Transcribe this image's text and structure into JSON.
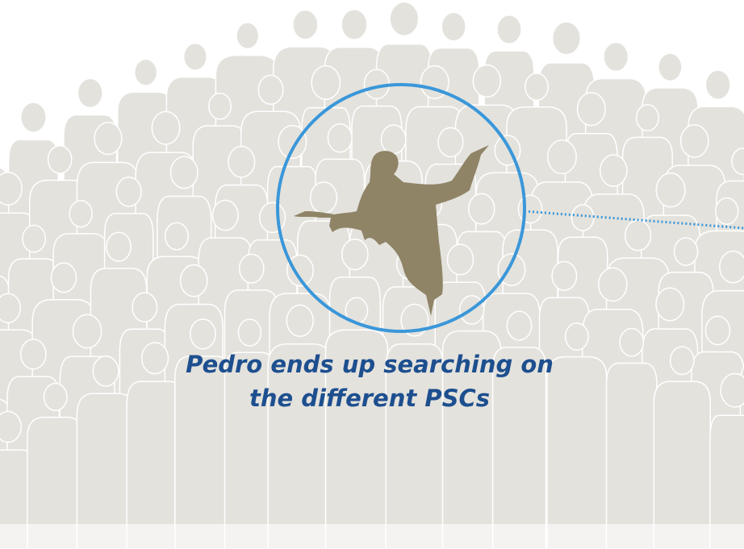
{
  "caption": {
    "lines": [
      "Pedro ends up searching on",
      "the different PSCs"
    ]
  }
}
